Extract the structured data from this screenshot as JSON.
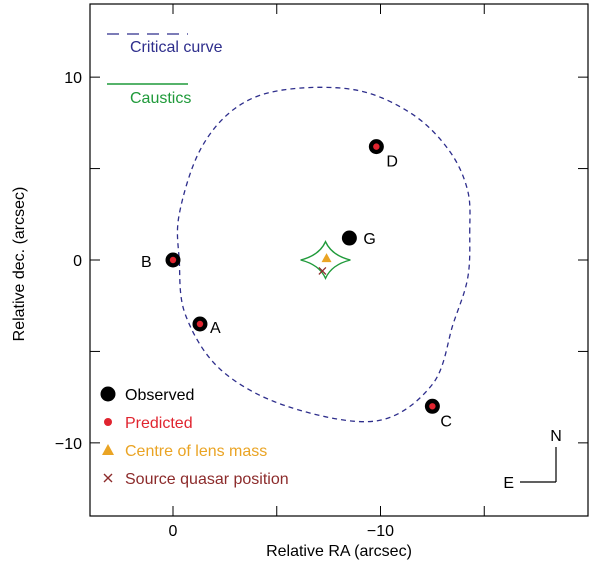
{
  "chart_data": {
    "type": "scatter",
    "xlabel": "Relative RA (arcsec)",
    "ylabel": "Relative dec. (arcsec)",
    "xlim": [
      4,
      -20
    ],
    "ylim": [
      -14,
      14
    ],
    "x_inverted": true,
    "grid": false,
    "xticks": [
      0,
      -10
    ],
    "yticks": [
      10,
      0,
      -10
    ],
    "tick_labels": {
      "x": [
        "0",
        "−10"
      ],
      "y": [
        "10",
        "0",
        "−10"
      ]
    },
    "colors": {
      "critical": "#2e2e8c",
      "caustic": "#1f9a3a",
      "observed": "#000000",
      "predicted": "#e0242f",
      "centre": "#eaa424",
      "source": "#8c2b2b",
      "axis": "#000000"
    },
    "series": [
      {
        "name": "Observed",
        "marker": "circle",
        "points": [
          {
            "label": "A",
            "x": -1.3,
            "y": -3.5
          },
          {
            "label": "B",
            "x": 0.0,
            "y": 0.0
          },
          {
            "label": "C",
            "x": -12.5,
            "y": -8.0
          },
          {
            "label": "D",
            "x": -9.8,
            "y": 6.2
          },
          {
            "label": "G",
            "x": -8.5,
            "y": 1.2
          }
        ]
      },
      {
        "name": "Predicted",
        "marker": "small-circle",
        "points": [
          {
            "x": -1.3,
            "y": -3.5
          },
          {
            "x": 0.0,
            "y": 0.0
          },
          {
            "x": -12.5,
            "y": -8.0
          },
          {
            "x": -9.8,
            "y": 6.2
          }
        ]
      },
      {
        "name": "Centre of lens mass",
        "marker": "triangle",
        "points": [
          {
            "x": -7.4,
            "y": 0.1
          }
        ]
      },
      {
        "name": "Source quasar position",
        "marker": "cross",
        "points": [
          {
            "x": -7.2,
            "y": -0.6
          }
        ]
      }
    ],
    "critical_curve": {
      "name": "Critical curve",
      "style": "dashed",
      "points": [
        [
          -14.3,
          1.5
        ],
        [
          -14.2,
          3.8
        ],
        [
          -13.3,
          6.0
        ],
        [
          -11.5,
          8.0
        ],
        [
          -8.8,
          9.3
        ],
        [
          -5.3,
          9.3
        ],
        [
          -3.0,
          8.3
        ],
        [
          -1.3,
          6.0
        ],
        [
          -0.3,
          2.5
        ],
        [
          -0.3,
          0.0
        ],
        [
          -0.6,
          -3.0
        ],
        [
          -2.3,
          -6.0
        ],
        [
          -5.5,
          -8.0
        ],
        [
          -9.8,
          -8.8
        ],
        [
          -12.5,
          -6.8
        ],
        [
          -13.5,
          -3.5
        ],
        [
          -14.2,
          -1.0
        ]
      ]
    },
    "caustics": {
      "name": "Caustics",
      "style": "solid",
      "center": [
        -7.35,
        0.0
      ],
      "half_width": 1.2,
      "half_height": 1.0
    },
    "legend_top": [
      {
        "label": "Critical curve",
        "style": "dashed"
      },
      {
        "label": "Caustics",
        "style": "solid"
      }
    ],
    "compass": {
      "north": "N",
      "east": "E"
    }
  }
}
